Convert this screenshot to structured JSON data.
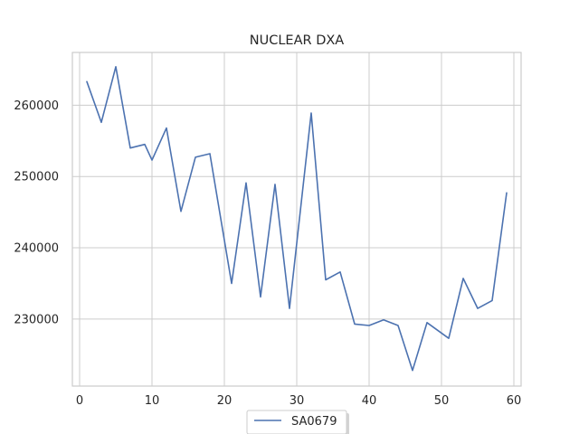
{
  "chart_data": {
    "type": "line",
    "title": "NUCLEAR DXA",
    "xlabel": "",
    "ylabel": "",
    "xlim": [
      -1,
      61
    ],
    "ylim": [
      220600,
      267400
    ],
    "xticks": [
      0,
      10,
      20,
      30,
      40,
      50,
      60
    ],
    "yticks": [
      230000,
      240000,
      250000,
      260000
    ],
    "grid": true,
    "legend": "bottom-center",
    "series": [
      {
        "name": "SA0679",
        "color": "#4c72b0",
        "x": [
          1,
          3,
          5,
          7,
          9,
          10,
          12,
          14,
          16,
          18,
          21,
          23,
          25,
          27,
          29,
          32,
          34,
          36,
          38,
          40,
          42,
          44,
          46,
          48,
          51,
          53,
          55,
          57,
          59
        ],
        "y": [
          263300,
          257600,
          265400,
          254000,
          254500,
          252300,
          256800,
          245100,
          252700,
          253200,
          235000,
          249100,
          233100,
          248900,
          231500,
          258900,
          235500,
          236600,
          229300,
          229100,
          229900,
          229100,
          222800,
          229500,
          227300,
          235700,
          231500,
          232600,
          247700
        ]
      }
    ]
  }
}
